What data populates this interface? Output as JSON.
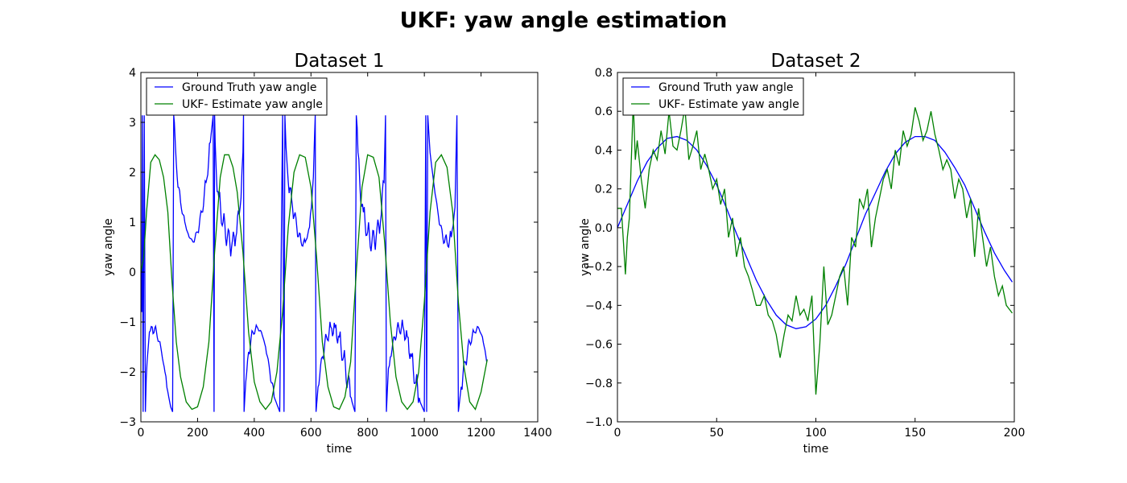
{
  "suptitle": "UKF:  yaw angle estimation",
  "chart_data": [
    {
      "type": "line",
      "title": "Dataset 1",
      "xlabel": "time",
      "ylabel": "yaw angle",
      "xlim": [
        0,
        1400
      ],
      "ylim": [
        -3,
        4
      ],
      "xticks": [
        0,
        200,
        400,
        600,
        800,
        1000,
        1200,
        1400
      ],
      "yticks": [
        -3,
        -2,
        -1,
        0,
        1,
        2,
        3,
        4
      ],
      "xtick_labels": [
        "0",
        "200",
        "400",
        "600",
        "800",
        "1000",
        "1200",
        "1400"
      ],
      "ytick_labels": [
        "−3",
        "−2",
        "−1",
        "0",
        "1",
        "2",
        "3",
        "4"
      ],
      "legend_position": "top-left",
      "series": [
        {
          "name": "Ground Truth yaw angle",
          "color": "#0000ff",
          "x": [
            0,
            3,
            5,
            8,
            12,
            16,
            22,
            30,
            40,
            55,
            70,
            85,
            95,
            105,
            112,
            116,
            118,
            122,
            128,
            140,
            155,
            170,
            185,
            200,
            215,
            230,
            245,
            255,
            258,
            260,
            262,
            266,
            275,
            290,
            305,
            320,
            335,
            350,
            360,
            362,
            364,
            370,
            380,
            395,
            410,
            425,
            440,
            455,
            470,
            490,
            500,
            505,
            508,
            512,
            520,
            535,
            550,
            565,
            580,
            595,
            605,
            612,
            615,
            618,
            625,
            640,
            655,
            670,
            685,
            700,
            715,
            730,
            745,
            755,
            760,
            763,
            766,
            772,
            785,
            800,
            815,
            830,
            845,
            858,
            863,
            866,
            870,
            880,
            895,
            910,
            925,
            940,
            955,
            970,
            985,
            1000,
            1005,
            1008,
            1012,
            1020,
            1035,
            1050,
            1065,
            1080,
            1095,
            1108,
            1112,
            1115,
            1120,
            1130,
            1145,
            1160,
            1175,
            1190,
            1205,
            1220
          ],
          "y": [
            0,
            -0.8,
            3.14,
            -2.8,
            3.14,
            -2.8,
            -1.8,
            -1.2,
            -1.1,
            -1.2,
            -1.5,
            -2.0,
            -2.4,
            -2.7,
            -2.8,
            3.14,
            3.0,
            2.5,
            1.9,
            1.4,
            1.0,
            0.7,
            0.6,
            0.8,
            1.2,
            1.8,
            2.6,
            3.14,
            -2.8,
            3.14,
            2.6,
            2.0,
            1.5,
            1.0,
            0.7,
            0.5,
            0.7,
            1.3,
            2.4,
            3.14,
            -2.8,
            -2.2,
            -1.6,
            -1.2,
            -1.1,
            -1.2,
            -1.5,
            -2.0,
            -2.5,
            -2.8,
            3.14,
            -2.8,
            3.14,
            2.5,
            1.8,
            1.3,
            0.9,
            0.6,
            0.6,
            0.9,
            1.6,
            2.6,
            3.14,
            -2.8,
            -2.3,
            -1.7,
            -1.3,
            -1.1,
            -1.1,
            -1.3,
            -1.7,
            -2.2,
            -2.6,
            -2.8,
            3.14,
            2.9,
            2.4,
            1.8,
            1.2,
            0.8,
            0.6,
            0.7,
            1.0,
            1.8,
            3.14,
            -2.8,
            -2.3,
            -1.7,
            -1.3,
            -1.1,
            -1.1,
            -1.3,
            -1.7,
            -2.2,
            -2.6,
            -2.8,
            3.14,
            -2.8,
            3.14,
            2.4,
            1.7,
            1.1,
            0.7,
            0.6,
            0.7,
            1.3,
            2.4,
            3.14,
            -2.8,
            -2.3,
            -1.8,
            -1.4,
            -1.2,
            -1.1,
            -1.3,
            -1.8
          ],
          "wiggle_max": 300
        },
        {
          "name": "UKF- Estimate yaw angle",
          "color": "#008000",
          "x": [
            0,
            10,
            20,
            35,
            50,
            65,
            80,
            95,
            110,
            125,
            140,
            160,
            180,
            200,
            220,
            240,
            260,
            280,
            295,
            310,
            325,
            340,
            360,
            380,
            400,
            420,
            440,
            460,
            480,
            500,
            520,
            540,
            560,
            580,
            600,
            620,
            640,
            660,
            680,
            700,
            720,
            740,
            760,
            780,
            800,
            820,
            840,
            860,
            880,
            900,
            920,
            940,
            960,
            980,
            1000,
            1020,
            1040,
            1060,
            1080,
            1100,
            1120,
            1140,
            1160,
            1180,
            1200,
            1222
          ],
          "y": [
            0.0,
            0.3,
            1.2,
            2.2,
            2.35,
            2.25,
            1.9,
            1.2,
            -0.2,
            -1.4,
            -2.1,
            -2.6,
            -2.75,
            -2.7,
            -2.3,
            -1.4,
            0.4,
            1.9,
            2.35,
            2.35,
            2.1,
            1.6,
            0.4,
            -1.2,
            -2.2,
            -2.6,
            -2.75,
            -2.6,
            -2.0,
            -0.8,
            0.9,
            2.0,
            2.35,
            2.3,
            1.7,
            0.3,
            -1.4,
            -2.3,
            -2.7,
            -2.75,
            -2.5,
            -1.8,
            0.0,
            1.7,
            2.35,
            2.3,
            1.9,
            0.6,
            -1.0,
            -2.1,
            -2.6,
            -2.75,
            -2.6,
            -2.0,
            -0.6,
            1.2,
            2.2,
            2.35,
            2.1,
            1.2,
            -0.6,
            -1.9,
            -2.6,
            -2.75,
            -2.4,
            -1.75
          ],
          "wiggle_max": 0
        }
      ]
    },
    {
      "type": "line",
      "title": "Dataset 2",
      "xlabel": "time",
      "ylabel": "yaw angle",
      "xlim": [
        0,
        200
      ],
      "ylim": [
        -1.0,
        0.8
      ],
      "xticks": [
        0,
        50,
        100,
        150,
        200
      ],
      "yticks": [
        -1.0,
        -0.8,
        -0.6,
        -0.4,
        -0.2,
        0.0,
        0.2,
        0.4,
        0.6,
        0.8
      ],
      "xtick_labels": [
        "0",
        "50",
        "100",
        "150",
        "200"
      ],
      "ytick_labels": [
        "−1.0",
        "−0.8",
        "−0.6",
        "−0.4",
        "−0.2",
        "0.0",
        "0.2",
        "0.4",
        "0.6",
        "0.8"
      ],
      "legend_position": "top-left",
      "series": [
        {
          "name": "Ground Truth yaw angle",
          "color": "#0000ff",
          "x": [
            0,
            5,
            10,
            15,
            20,
            25,
            30,
            35,
            40,
            45,
            50,
            55,
            60,
            65,
            70,
            75,
            80,
            85,
            90,
            95,
            100,
            105,
            110,
            115,
            120,
            125,
            130,
            135,
            140,
            145,
            150,
            155,
            160,
            165,
            170,
            175,
            180,
            185,
            190,
            195,
            199
          ],
          "y": [
            0.0,
            0.12,
            0.24,
            0.34,
            0.41,
            0.46,
            0.47,
            0.45,
            0.4,
            0.32,
            0.22,
            0.1,
            -0.03,
            -0.15,
            -0.27,
            -0.37,
            -0.45,
            -0.5,
            -0.52,
            -0.51,
            -0.47,
            -0.4,
            -0.3,
            -0.19,
            -0.06,
            0.07,
            0.18,
            0.29,
            0.38,
            0.44,
            0.47,
            0.47,
            0.45,
            0.39,
            0.31,
            0.22,
            0.1,
            -0.02,
            -0.13,
            -0.22,
            -0.28
          ],
          "wiggle_max": 0
        },
        {
          "name": "UKF- Estimate yaw angle",
          "color": "#008000",
          "x": [
            0,
            2,
            4,
            5,
            6,
            8,
            9,
            10,
            12,
            14,
            16,
            18,
            20,
            22,
            24,
            26,
            28,
            30,
            32,
            34,
            36,
            38,
            40,
            42,
            44,
            46,
            48,
            50,
            52,
            54,
            56,
            58,
            60,
            62,
            64,
            66,
            68,
            70,
            72,
            74,
            76,
            78,
            80,
            82,
            84,
            86,
            88,
            90,
            92,
            94,
            96,
            98,
            100,
            102,
            104,
            106,
            108,
            110,
            112,
            114,
            116,
            118,
            120,
            122,
            124,
            126,
            128,
            130,
            132,
            134,
            136,
            138,
            140,
            142,
            144,
            146,
            148,
            150,
            152,
            154,
            156,
            158,
            160,
            162,
            164,
            166,
            168,
            170,
            172,
            174,
            176,
            178,
            180,
            182,
            184,
            186,
            188,
            190,
            192,
            194,
            196,
            199
          ],
          "y": [
            0.1,
            0.1,
            -0.24,
            -0.05,
            0.05,
            0.65,
            0.35,
            0.45,
            0.25,
            0.1,
            0.3,
            0.4,
            0.35,
            0.5,
            0.38,
            0.6,
            0.42,
            0.4,
            0.5,
            0.62,
            0.35,
            0.42,
            0.5,
            0.3,
            0.38,
            0.3,
            0.2,
            0.25,
            0.12,
            0.2,
            -0.05,
            0.05,
            -0.15,
            -0.05,
            -0.2,
            -0.25,
            -0.32,
            -0.4,
            -0.4,
            -0.35,
            -0.45,
            -0.48,
            -0.55,
            -0.67,
            -0.55,
            -0.45,
            -0.48,
            -0.35,
            -0.45,
            -0.42,
            -0.48,
            -0.35,
            -0.86,
            -0.6,
            -0.2,
            -0.5,
            -0.45,
            -0.35,
            -0.25,
            -0.2,
            -0.4,
            -0.05,
            -0.1,
            0.15,
            0.1,
            0.2,
            -0.1,
            0.05,
            0.15,
            0.25,
            0.3,
            0.2,
            0.4,
            0.32,
            0.5,
            0.42,
            0.48,
            0.62,
            0.55,
            0.45,
            0.5,
            0.6,
            0.48,
            0.4,
            0.3,
            0.35,
            0.3,
            0.15,
            0.25,
            0.2,
            0.05,
            0.15,
            -0.15,
            0.1,
            -0.05,
            -0.2,
            -0.1,
            -0.25,
            -0.35,
            -0.3,
            -0.4,
            -0.44
          ],
          "wiggle_max": 0
        }
      ]
    }
  ]
}
